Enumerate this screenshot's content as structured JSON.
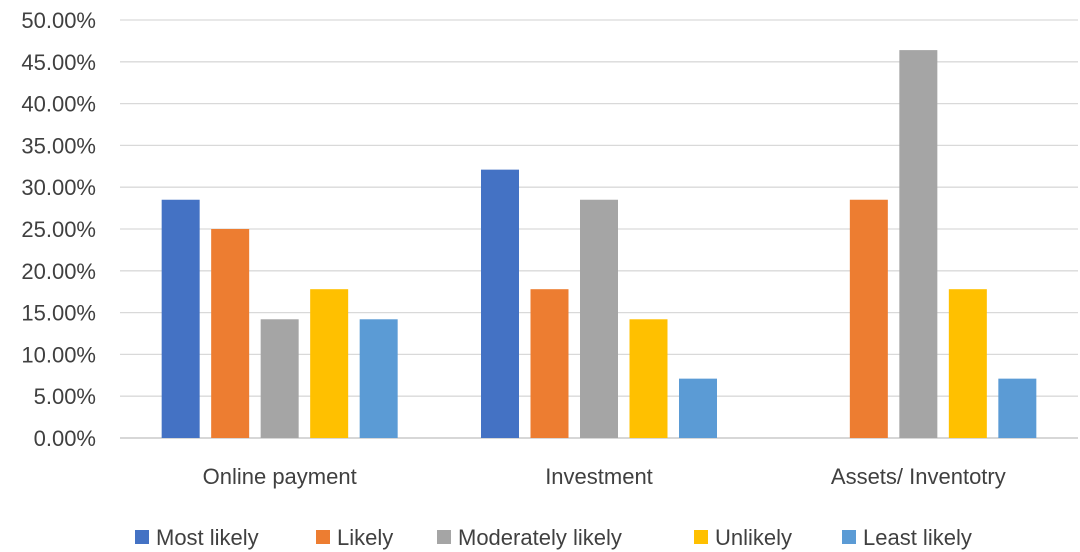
{
  "chart_data": {
    "type": "bar",
    "title": "",
    "xlabel": "",
    "ylabel": "",
    "categories": [
      "Online payment",
      "Investment",
      "Assets/ Inventotry"
    ],
    "ylim": [
      0,
      50
    ],
    "yticks": [
      "0.00%",
      "5.00%",
      "10.00%",
      "15.00%",
      "20.00%",
      "25.00%",
      "30.00%",
      "35.00%",
      "40.00%",
      "45.00%",
      "50.00%"
    ],
    "grid": true,
    "legend_position": "bottom",
    "series": [
      {
        "name": "Most likely",
        "color": "#4472C4",
        "values": [
          28.5,
          32.1,
          0
        ]
      },
      {
        "name": "Likely",
        "color": "#ED7D31",
        "values": [
          25.0,
          17.8,
          28.5
        ]
      },
      {
        "name": "Moderately likely",
        "color": "#A5A5A5",
        "values": [
          14.2,
          28.5,
          46.4
        ]
      },
      {
        "name": "Unlikely",
        "color": "#FFC000",
        "values": [
          17.8,
          14.2,
          17.8
        ]
      },
      {
        "name": "Least likely",
        "color": "#5B9BD5",
        "values": [
          14.2,
          7.1,
          7.1
        ]
      }
    ]
  }
}
